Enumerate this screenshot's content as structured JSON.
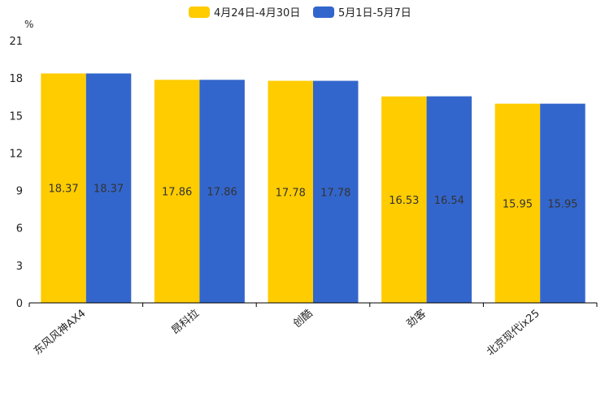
{
  "chart_data": {
    "type": "bar",
    "title": "",
    "ylabel": "%",
    "xlabel": "",
    "ylim": [
      0,
      21
    ],
    "yticks": [
      0,
      3,
      6,
      9,
      12,
      15,
      18,
      21
    ],
    "grid": false,
    "legend_position": "top-center",
    "categories": [
      "东风风神AX4",
      "昂科拉",
      "创酷",
      "劲客",
      "北京现代ix25"
    ],
    "series": [
      {
        "name": "4月24日-4月30日",
        "color": "#ffcc00",
        "values": [
          18.37,
          17.86,
          17.78,
          16.53,
          15.95
        ],
        "labels": [
          "18.37",
          "17.86",
          "17.78",
          "16.53",
          "15.95"
        ]
      },
      {
        "name": "5月1日-5月7日",
        "color": "#3366cc",
        "values": [
          18.37,
          17.86,
          17.78,
          16.54,
          15.95
        ],
        "labels": [
          "18.37",
          "17.86",
          "17.78",
          "16.54",
          "15.95"
        ]
      }
    ]
  }
}
